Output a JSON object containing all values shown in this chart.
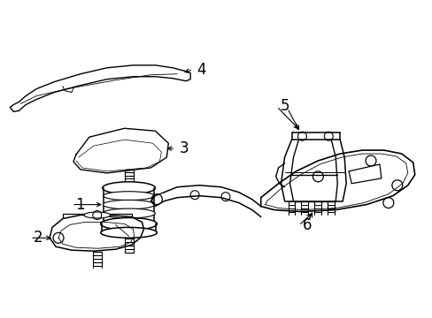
{
  "background_color": "#ffffff",
  "line_color": "#000000",
  "fig_width": 4.89,
  "fig_height": 3.6,
  "dpi": 100,
  "label_fontsize": 12
}
